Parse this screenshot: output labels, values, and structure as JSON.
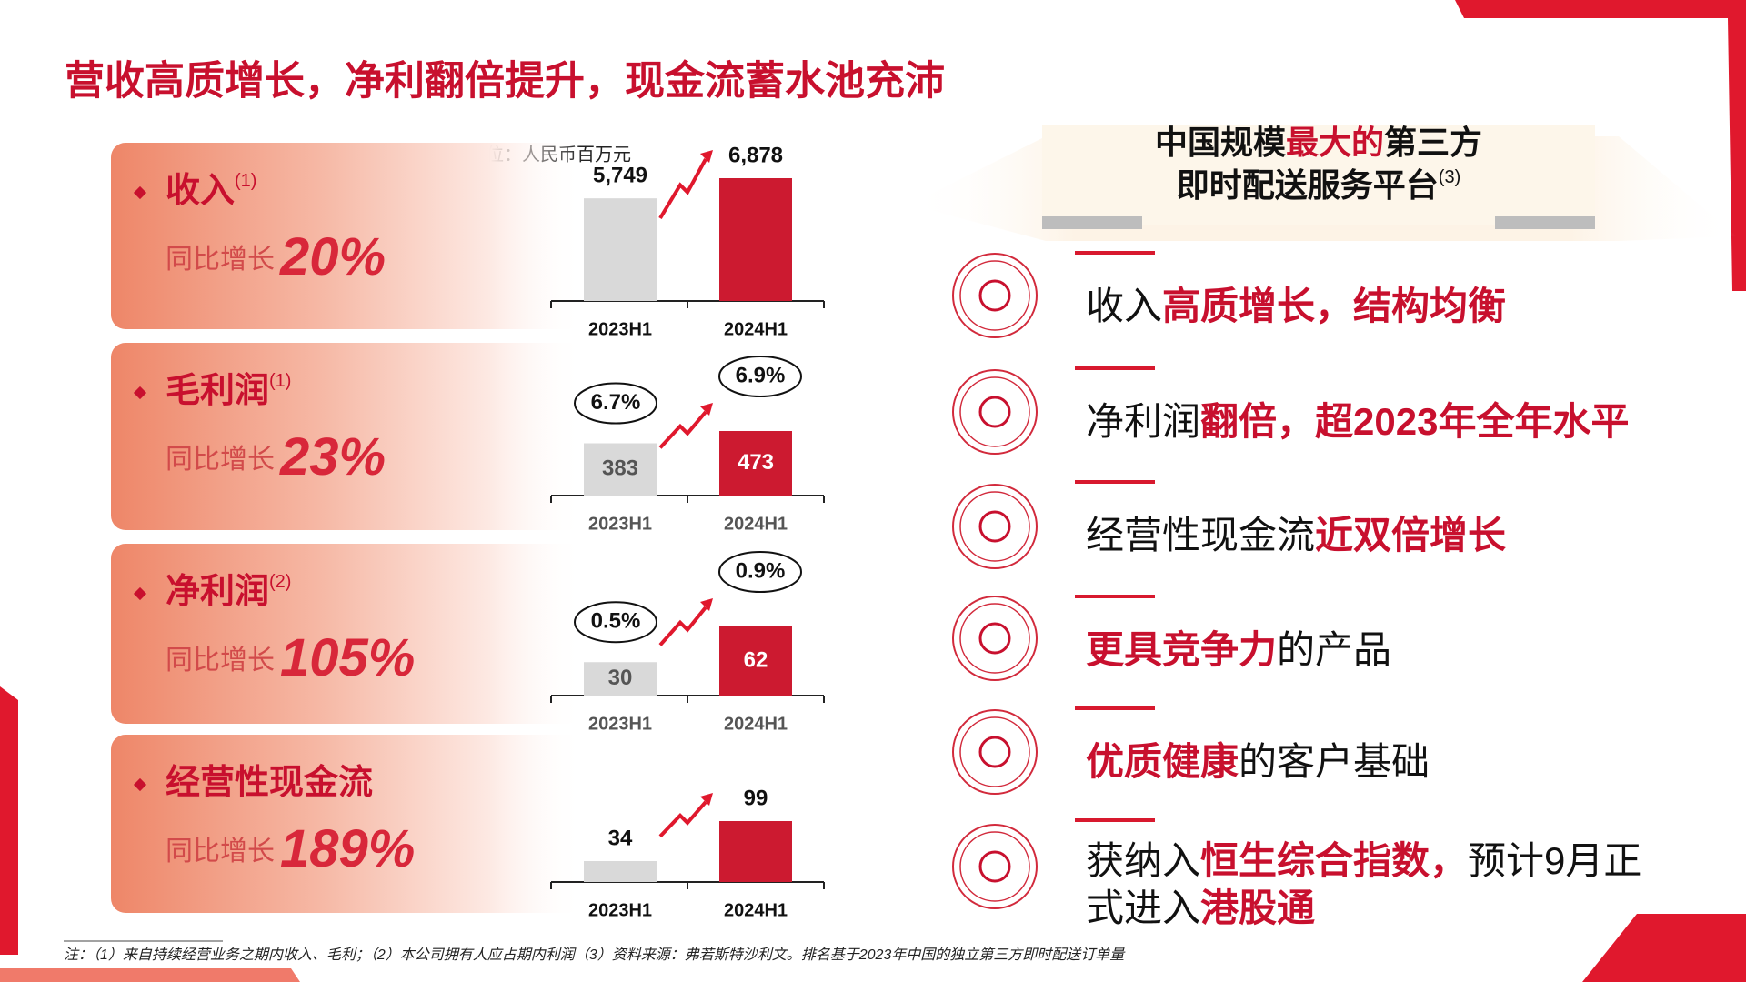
{
  "title": "营收高质增长，净利翻倍提升，现金流蓄水池充沛",
  "unit": "单位：人民币百万元",
  "panels": [
    {
      "label": "收入",
      "note": "(1)",
      "growth_prefix": "同比增长",
      "growth": "20%",
      "categories": [
        "2023H1",
        "2024H1"
      ],
      "values": [
        5749,
        6878
      ],
      "value_labels": [
        "5,749",
        "6,878"
      ],
      "label_inside": false
    },
    {
      "label": "毛利润",
      "note": "(1)",
      "growth_prefix": "同比增长",
      "growth": "23%",
      "categories": [
        "2023H1",
        "2024H1"
      ],
      "values": [
        383,
        473
      ],
      "ratios": [
        "6.7%",
        "6.9%"
      ],
      "label_inside": true
    },
    {
      "label": "净利润",
      "note": "(2)",
      "growth_prefix": "同比增长",
      "growth": "105%",
      "categories": [
        "2023H1",
        "2024H1"
      ],
      "values": [
        30,
        62
      ],
      "ratios": [
        "0.5%",
        "0.9%"
      ],
      "label_inside": true
    },
    {
      "label": "经营性现金流",
      "growth_prefix": "同比增长",
      "growth": "189%",
      "categories": [
        "2023H1",
        "2024H1"
      ],
      "values": [
        34,
        99
      ],
      "label_inside": false
    }
  ],
  "banner": {
    "line1": [
      {
        "text": "中国规模"
      },
      {
        "text": "最大的",
        "em": true
      },
      {
        "text": "第三方"
      }
    ],
    "line2": [
      {
        "text": "即时配送服务平台"
      }
    ],
    "note": "(3)"
  },
  "items": [
    {
      "lines": [
        [
          {
            "text": "收入"
          },
          {
            "text": "高质增长，结构均衡",
            "em": true
          }
        ]
      ]
    },
    {
      "lines": [
        [
          {
            "text": "净利润"
          },
          {
            "text": "翻倍，超2023年全年水平",
            "em": true
          }
        ]
      ]
    },
    {
      "lines": [
        [
          {
            "text": "经营性现金流"
          },
          {
            "text": "近双倍增长",
            "em": true
          }
        ]
      ]
    },
    {
      "lines": [
        [
          {
            "text": "更具竞争力",
            "em": true
          },
          {
            "text": "的产品"
          }
        ]
      ]
    },
    {
      "lines": [
        [
          {
            "text": "优质健康",
            "em": true
          },
          {
            "text": "的客户基础"
          }
        ]
      ]
    },
    {
      "lines": [
        [
          {
            "text": "获纳入"
          },
          {
            "text": "恒生综合指数，",
            "em": true
          },
          {
            "text": "预计9月正"
          }
        ],
        [
          {
            "text": "式进入"
          },
          {
            "text": "港股通",
            "em": true
          }
        ]
      ]
    }
  ],
  "footnote": "注：（1）来自持续经营业务之期内收入、毛利；（2）本公司拥有人应占期内利润（3）资料来源：弗若斯特沙利文。排名基于2023年中国的独立第三方即时配送订单量"
}
